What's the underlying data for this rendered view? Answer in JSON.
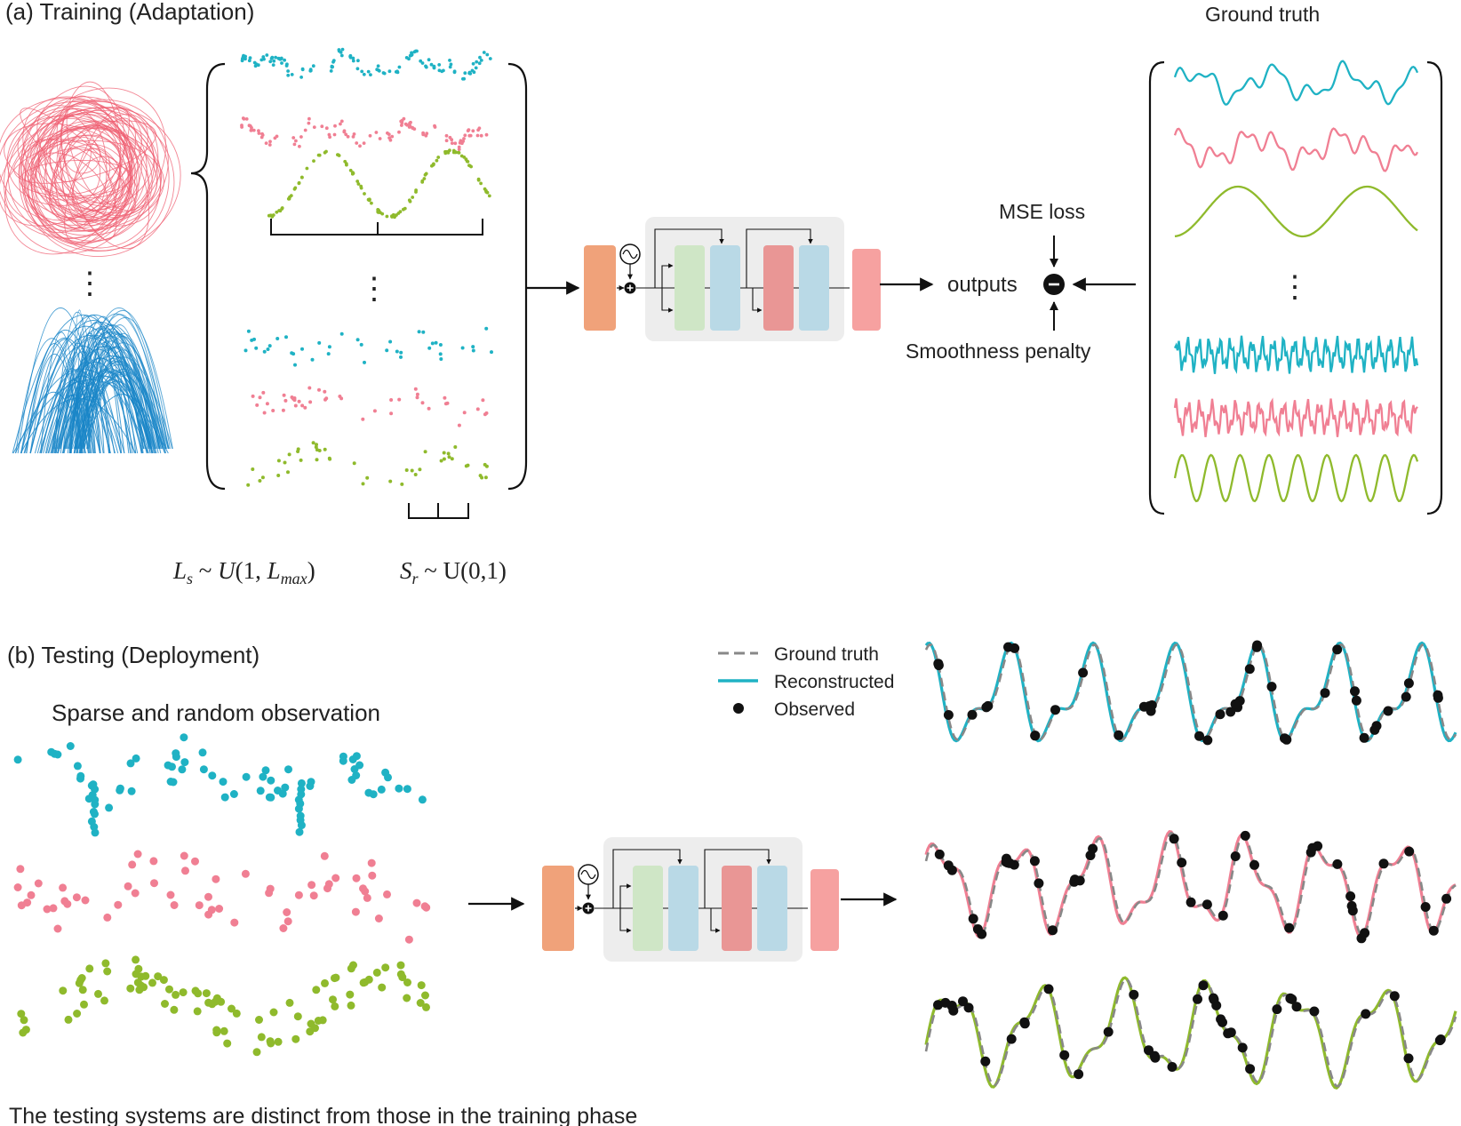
{
  "panel_a": {
    "title": "(a) Training (Adaptation)",
    "ground_truth_label": "Ground truth",
    "mse_label": "MSE loss",
    "outputs_label": "outputs",
    "smoothness_label": "Smoothness penalty",
    "ls_formula": "L_s ~ U(1, L_max)",
    "sr_formula": "S_r ~ U(0,1)",
    "ellipsis": "⋮"
  },
  "panel_b": {
    "title": "(b) Testing (Deployment)",
    "subtitle": "Sparse and random observation",
    "footer": "The testing systems are distinct from those in the training phase",
    "legend": {
      "ground_truth": "Ground truth",
      "reconstructed": "Reconstructed",
      "observed": "Observed"
    }
  },
  "colors": {
    "teal": "#1fb2c4",
    "pink": "#f07f93",
    "green": "#8fba2c",
    "attractor_red": "#ef5f72",
    "attractor_blue": "#1a86c8",
    "orange_block": "#f0a27a",
    "green_block": "#cfe6c6",
    "blue_block": "#b9d9e6",
    "red_block": "#e99695",
    "salmon_block": "#f6a1a0",
    "panel_gray": "#ededed",
    "dashed_gray": "#888888"
  },
  "icons": [
    "sine-wave-icon",
    "plus-circle-icon",
    "minus-circle-icon"
  ]
}
